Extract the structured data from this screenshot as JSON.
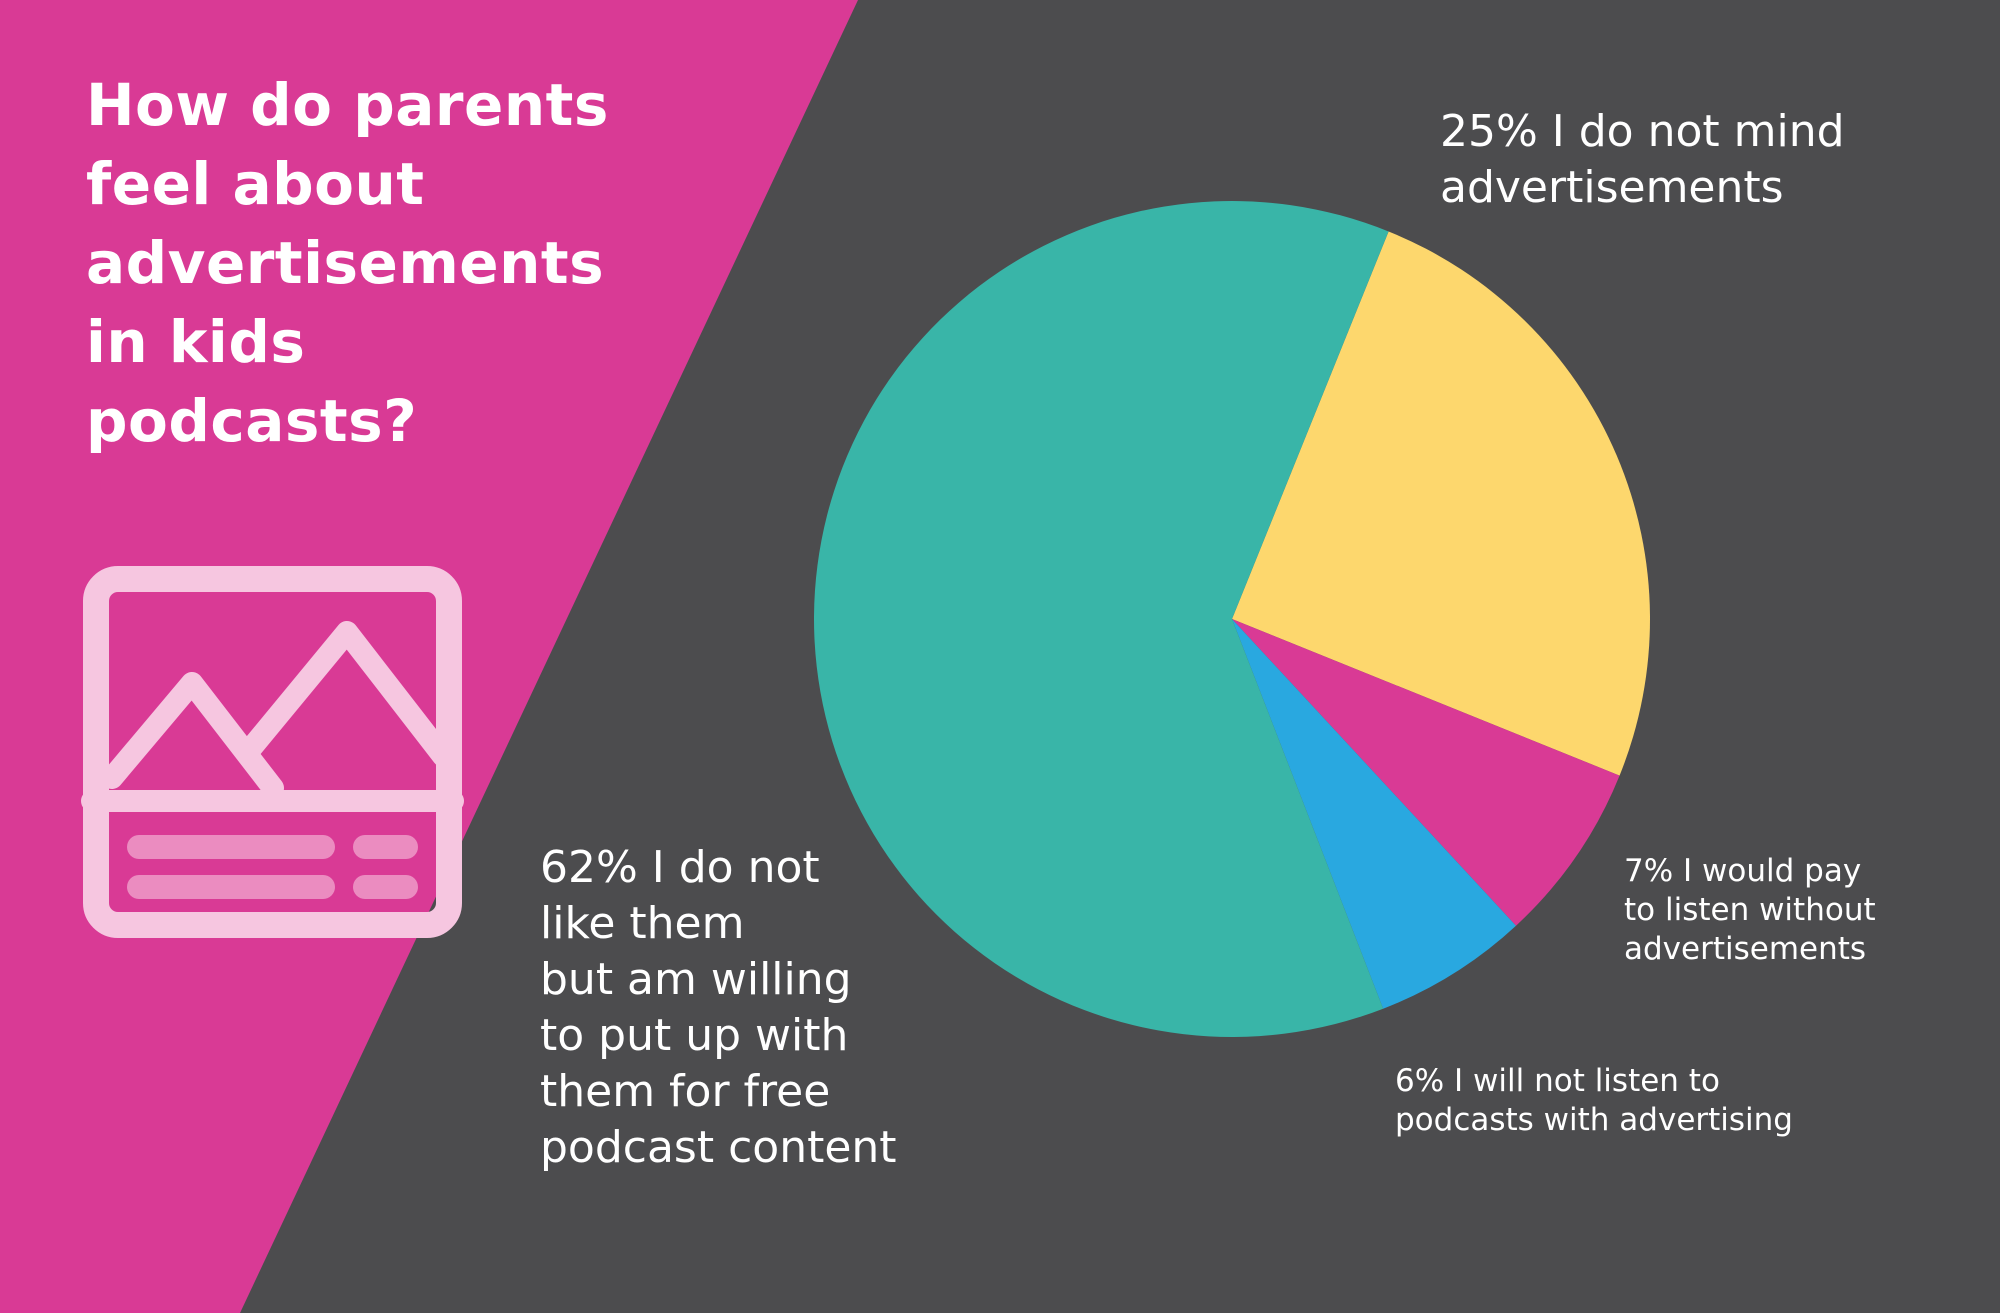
{
  "colors": {
    "background": "#4c4c4e",
    "panel": "#d93a95",
    "icon": "#f6c6e0",
    "icon_bars": "#eb8cc0"
  },
  "title": "How do parents\nfeel about\nadvertisements\nin kids\npodcasts?",
  "icon": "image-placeholder-icon",
  "chart_data": {
    "type": "pie",
    "title": "How do parents feel about advertisements in kids podcasts?",
    "slices": [
      {
        "label": "25% I do not mind\nadvertisements",
        "value": 25,
        "color": "#fdd76d"
      },
      {
        "label": "7% I would pay\nto listen without\nadvertisements",
        "value": 7,
        "color": "#d93a95"
      },
      {
        "label": "6% I will not listen to\npodcasts with advertising",
        "value": 6,
        "color": "#29a8e0"
      },
      {
        "label": "62% I do not\nlike them\nbut am willing\nto put up with\nthem for free\npodcast content",
        "value": 62,
        "color": "#39b5a8"
      }
    ],
    "start_angle_deg": 22,
    "direction": "clockwise",
    "legend": "none"
  }
}
